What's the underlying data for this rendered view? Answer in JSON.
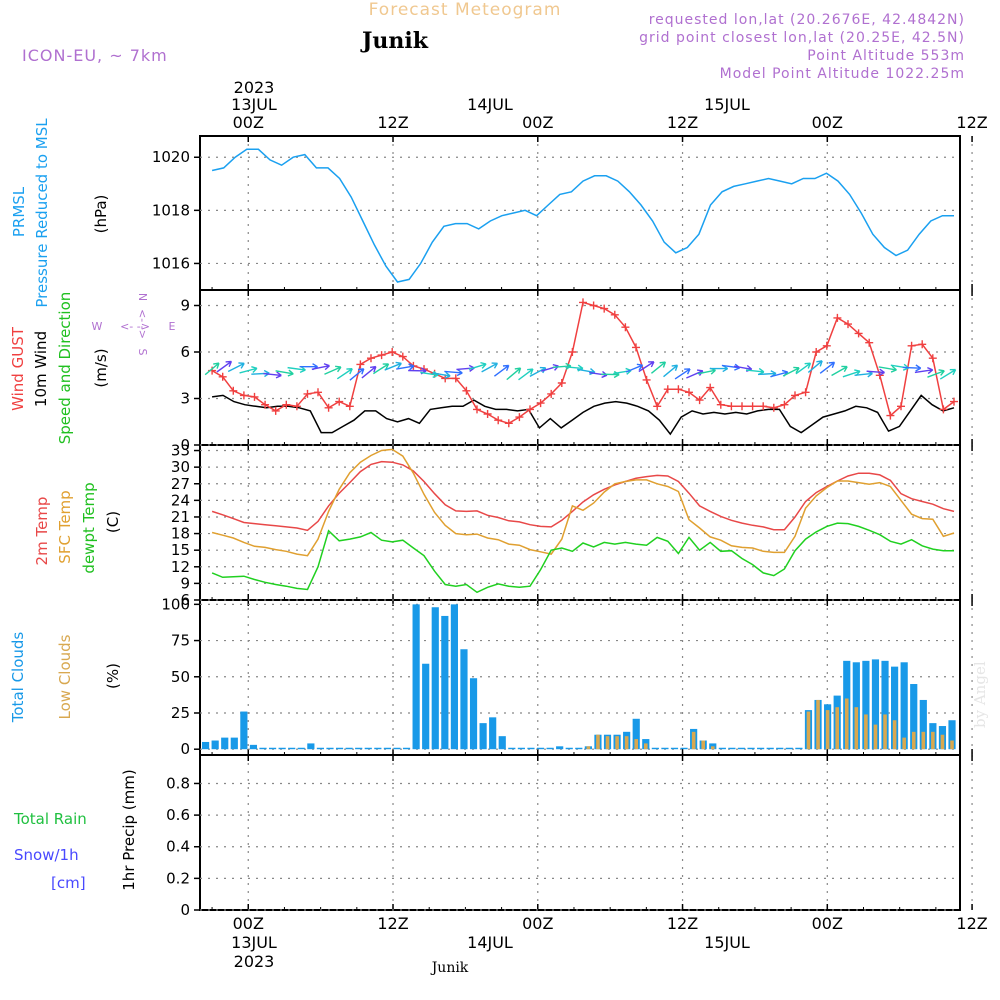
{
  "header": {
    "title": "Forecast Meteogram",
    "location": "Junik",
    "model": "ICON-EU, ~ 7km",
    "requested": "requested lon,lat (20.2676E, 42.4842N)",
    "gridpoint": "grid point closest lon,lat (20.25E, 42.5N)",
    "point_alt": "Point Altitude 553m",
    "model_alt": "Model Point Altitude 1022.25m",
    "footer_location": "Junik",
    "credit": "by Angel"
  },
  "colors": {
    "pressure": "#1aa0f0",
    "gust": "#f04040",
    "wind": "#000000",
    "temp2m": "#e84848",
    "sfc_temp": "#e0a030",
    "dewpt": "#20d020",
    "total_cloud": "#1899e8",
    "low_cloud": "#d8a850",
    "rain": "#20c040",
    "snow": "#4848ff",
    "purple": "#b070d0"
  },
  "time_axis": {
    "top_year": "2023",
    "ticks": [
      "00Z",
      "12Z",
      "00Z",
      "12Z",
      "00Z",
      "12Z"
    ],
    "dates": [
      "13JUL",
      "14JUL",
      "15JUL"
    ],
    "bottom_year": "2023"
  },
  "compass": {
    "n": "N",
    "s": "S",
    "e": "E",
    "w": "W",
    "arrows": "<- ->"
  },
  "panels": {
    "pressure": {
      "label1": "PRMSL",
      "label2": "Pressure Reduced to MSL",
      "unit": "(hPa)"
    },
    "wind": {
      "gust": "Wind GUST",
      "wind": "10m Wind",
      "dir": "Speed and Direction",
      "unit": "(m/s)"
    },
    "temp": {
      "t2m": "2m Temp",
      "sfc": "SFC Temp",
      "dew": "dewpt Temp",
      "unit": "(C)"
    },
    "clouds": {
      "total": "Total Clouds",
      "low": "Low Clouds",
      "unit": "(%)"
    },
    "precip": {
      "rain": "Total  Rain",
      "snow": "Snow/1h",
      "snow_unit": "[cm]",
      "unit": "1hr Precip (mm)"
    }
  },
  "chart_data": {
    "type": "line",
    "x_unit": "hours from 13JUL 00Z",
    "x_range": [
      -4,
      59
    ],
    "pressure": {
      "ylim": [
        1015,
        1020.8
      ],
      "yticks": [
        "1016",
        "1018",
        "1020"
      ],
      "values": [
        1019.5,
        1019.6,
        1020.0,
        1020.3,
        1020.3,
        1019.9,
        1019.7,
        1020.0,
        1020.1,
        1019.6,
        1019.6,
        1019.2,
        1018.5,
        1017.6,
        1016.7,
        1015.9,
        1015.3,
        1015.4,
        1016.0,
        1016.8,
        1017.4,
        1017.5,
        1017.5,
        1017.3,
        1017.6,
        1017.8,
        1017.9,
        1018.0,
        1017.8,
        1018.2,
        1018.6,
        1018.7,
        1019.1,
        1019.3,
        1019.3,
        1019.1,
        1018.7,
        1018.2,
        1017.6,
        1016.8,
        1016.4,
        1016.6,
        1017.1,
        1018.2,
        1018.7,
        1018.9,
        1019.0,
        1019.1,
        1019.2,
        1019.1,
        1019.0,
        1019.2,
        1019.2,
        1019.4,
        1019.1,
        1018.6,
        1017.9,
        1017.1,
        1016.6,
        1016.3,
        1016.5,
        1017.1,
        1017.6,
        1017.8,
        1017.8
      ]
    },
    "wind": {
      "ylim": [
        0,
        10
      ],
      "yticks": [
        "0",
        "3",
        "6",
        "9"
      ],
      "gust": [
        4.8,
        4.4,
        3.5,
        3.2,
        3.1,
        2.6,
        2.2,
        2.6,
        2.5,
        3.3,
        3.4,
        2.4,
        2.8,
        2.5,
        5.2,
        5.6,
        5.8,
        6.0,
        5.7,
        5.1,
        4.9,
        4.6,
        4.3,
        4.3,
        3.5,
        2.3,
        2.0,
        1.6,
        1.4,
        1.8,
        2.3,
        2.7,
        3.3,
        4.0,
        6.0,
        9.2,
        9.0,
        8.8,
        8.4,
        7.6,
        6.3,
        4.2,
        2.5,
        3.6,
        3.6,
        3.4,
        2.9,
        3.7,
        2.6,
        2.5,
        2.5,
        2.5,
        2.5,
        2.4,
        2.6,
        3.2,
        3.4,
        6.0,
        6.4,
        8.2,
        7.8,
        7.2,
        6.6,
        4.5,
        1.9,
        2.5,
        6.4,
        6.5,
        5.6,
        2.3,
        2.8
      ],
      "speed": [
        3.1,
        3.2,
        2.8,
        2.6,
        2.5,
        2.4,
        2.5,
        2.5,
        2.4,
        2.2,
        0.8,
        0.8,
        1.2,
        1.6,
        2.2,
        2.2,
        1.7,
        1.5,
        1.7,
        1.4,
        2.3,
        2.4,
        2.5,
        2.5,
        2.9,
        2.5,
        2.3,
        2.3,
        2.2,
        2.3,
        1.1,
        1.7,
        1.1,
        1.6,
        2.1,
        2.5,
        2.7,
        2.8,
        2.7,
        2.5,
        2.2,
        1.6,
        0.7,
        1.8,
        2.2,
        2.0,
        2.1,
        2.0,
        2.1,
        2.0,
        2.2,
        2.3,
        2.3,
        1.2,
        0.8,
        1.3,
        1.8,
        2.0,
        2.2,
        2.5,
        2.4,
        2.1,
        0.9,
        1.2,
        2.2,
        3.2,
        2.6,
        2.2,
        2.4
      ]
    },
    "temp": {
      "ylim": [
        6,
        34
      ],
      "yticks": [
        "6",
        "9",
        "12",
        "15",
        "18",
        "21",
        "24",
        "27",
        "30",
        "33"
      ],
      "t2m": [
        22.0,
        21.4,
        20.7,
        20.0,
        19.8,
        19.6,
        19.4,
        19.2,
        19.0,
        18.6,
        20.2,
        23.0,
        25.3,
        27.2,
        29.2,
        30.5,
        31.0,
        30.9,
        30.4,
        29.3,
        27.4,
        25.2,
        23.2,
        22.1,
        22.0,
        22.1,
        21.3,
        20.9,
        20.3,
        20.1,
        19.6,
        19.3,
        19.2,
        20.4,
        22.0,
        23.7,
        25.0,
        26.0,
        26.8,
        27.4,
        28.0,
        28.3,
        28.5,
        28.4,
        27.4,
        25.3,
        23.0,
        22.0,
        21.1,
        20.4,
        19.9,
        19.5,
        19.2,
        18.7,
        18.7,
        21.0,
        23.8,
        25.4,
        26.5,
        27.5,
        28.4,
        28.9,
        28.9,
        28.6,
        27.6,
        25.2,
        24.3,
        23.8,
        23.3,
        22.5,
        22.0
      ],
      "sfc": [
        18.2,
        17.7,
        17.2,
        16.4,
        15.7,
        15.5,
        15.1,
        14.8,
        14.3,
        14.0,
        17.0,
        22.0,
        26.0,
        29.0,
        30.9,
        32.1,
        33.0,
        33.2,
        32.0,
        28.9,
        25.1,
        21.8,
        19.5,
        18.0,
        17.8,
        17.9,
        17.2,
        16.9,
        16.1,
        15.9,
        15.1,
        14.7,
        14.3,
        17.0,
        23.0,
        22.2,
        23.5,
        25.5,
        27.0,
        27.4,
        27.7,
        27.7,
        27.0,
        26.5,
        25.6,
        20.5,
        19.0,
        17.4,
        16.8,
        15.8,
        15.5,
        15.4,
        14.8,
        14.6,
        14.6,
        17.5,
        22.6,
        24.8,
        26.3,
        27.5,
        27.5,
        27.2,
        26.9,
        27.2,
        26.5,
        24.0,
        21.5,
        20.7,
        20.6,
        17.5,
        18.1
      ],
      "dew": [
        10.9,
        10.1,
        10.2,
        10.3,
        9.7,
        9.2,
        8.8,
        8.5,
        8.1,
        7.9,
        12.0,
        18.5,
        16.7,
        17.0,
        17.4,
        18.2,
        16.8,
        16.5,
        16.8,
        15.4,
        14.0,
        11.2,
        8.8,
        8.5,
        8.8,
        7.4,
        8.3,
        8.9,
        8.5,
        8.3,
        8.5,
        11.5,
        15.0,
        15.4,
        14.8,
        16.3,
        15.6,
        16.4,
        16.1,
        16.4,
        16.1,
        15.9,
        17.3,
        16.6,
        14.4,
        17.3,
        15.0,
        16.4,
        14.8,
        14.9,
        13.5,
        12.4,
        10.9,
        10.4,
        11.6,
        14.9,
        17.0,
        18.3,
        19.3,
        19.9,
        19.8,
        19.3,
        18.6,
        17.8,
        16.6,
        16.1,
        16.9,
        15.8,
        15.2,
        14.9,
        14.9
      ]
    },
    "clouds": {
      "ylim": [
        -4,
        103
      ],
      "yticks": [
        "0",
        "25",
        "50",
        "75",
        "100"
      ],
      "total": [
        5,
        6,
        8,
        8,
        26,
        3,
        1,
        1,
        1,
        1,
        1,
        4,
        1,
        1,
        1,
        1,
        1,
        1,
        1,
        1,
        1,
        1,
        100,
        59,
        98,
        92,
        100,
        69,
        49,
        18,
        22,
        9,
        1,
        1,
        1,
        1,
        1,
        2,
        1,
        1,
        2,
        10,
        10,
        10,
        12,
        21,
        7,
        1,
        1,
        1,
        1,
        14,
        6,
        4,
        1,
        1,
        1,
        1,
        1,
        1,
        1,
        1,
        1,
        27,
        34,
        31,
        37,
        61,
        60,
        61,
        62,
        61,
        57,
        60,
        45,
        34,
        18,
        16,
        20
      ],
      "low": [
        0,
        0,
        0,
        0,
        0,
        0,
        0,
        0,
        0,
        0,
        0,
        0,
        0,
        0,
        0,
        0,
        0,
        0,
        0,
        0,
        0,
        0,
        0,
        0,
        0,
        0,
        0,
        0,
        0,
        0,
        0,
        0,
        0,
        0,
        0,
        0,
        0,
        0,
        0,
        0,
        2,
        10,
        9,
        9,
        9,
        7,
        4,
        0,
        0,
        0,
        0,
        12,
        6,
        2,
        0,
        0,
        0,
        0,
        0,
        0,
        0,
        0,
        0,
        26,
        34,
        27,
        29,
        35,
        29,
        24,
        17,
        24,
        20,
        8,
        12,
        12,
        12,
        10,
        6
      ]
    },
    "precip": {
      "ylim": [
        0,
        0.98
      ],
      "yticks": [
        "0",
        "0.2",
        "0.4",
        "0.6",
        "0.8"
      ],
      "rain": [],
      "snow": []
    }
  }
}
